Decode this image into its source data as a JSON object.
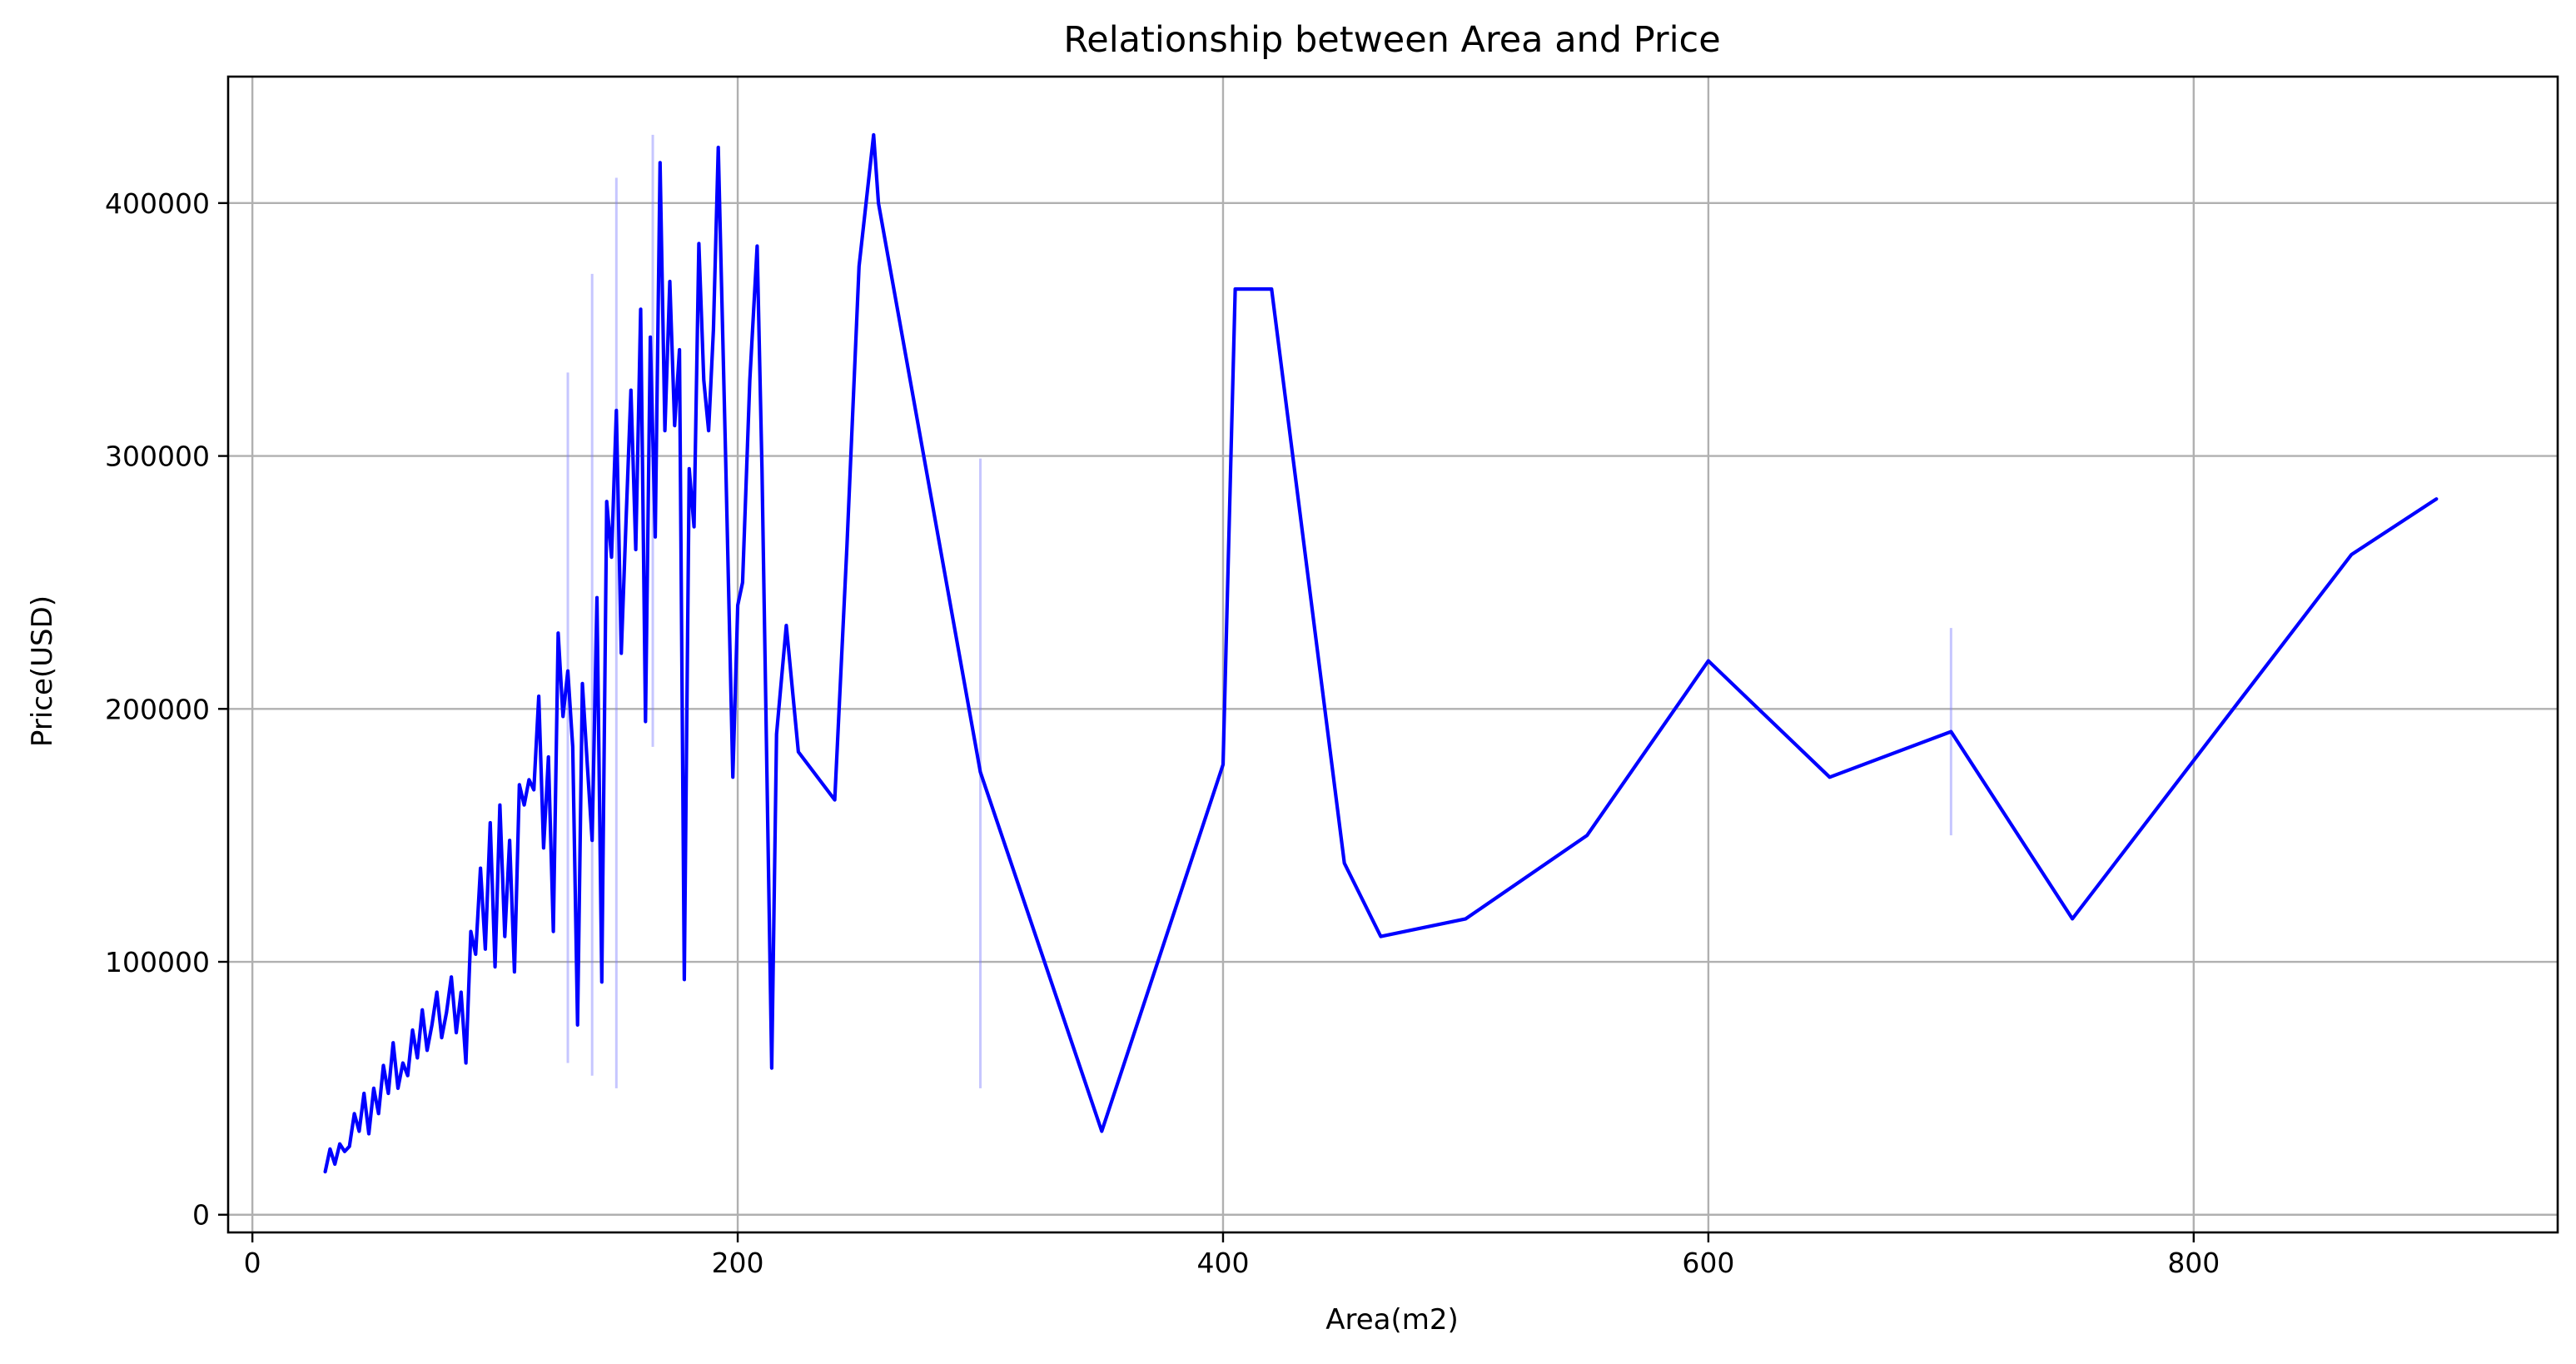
{
  "chart_data": {
    "type": "line",
    "title": "Relationship between Area and Price",
    "xlabel": "Area(m2)",
    "ylabel": "Price(USD)",
    "xlim": [
      -10,
      950
    ],
    "ylim": [
      -7000,
      450000
    ],
    "xticks": [
      0,
      200,
      400,
      600,
      800
    ],
    "xtick_labels": [
      "0",
      "200",
      "400",
      "600",
      "800"
    ],
    "yticks": [
      0,
      100000,
      200000,
      300000,
      400000
    ],
    "ytick_labels": [
      "0",
      "100000",
      "200000",
      "300000",
      "400000"
    ],
    "grid": true,
    "line_color": "#0000ff",
    "band_color": "#8080ff",
    "series": [
      {
        "name": "Price",
        "x": [
          30,
          32,
          34,
          36,
          38,
          40,
          42,
          44,
          46,
          48,
          50,
          52,
          54,
          56,
          58,
          60,
          62,
          64,
          66,
          68,
          70,
          72,
          74,
          76,
          78,
          80,
          82,
          84,
          86,
          88,
          90,
          92,
          94,
          96,
          98,
          100,
          102,
          104,
          106,
          108,
          110,
          112,
          114,
          116,
          118,
          120,
          122,
          124,
          126,
          128,
          130,
          132,
          134,
          136,
          138,
          140,
          142,
          144,
          146,
          148,
          150,
          152,
          154,
          156,
          158,
          160,
          162,
          164,
          166,
          168,
          170,
          172,
          174,
          176,
          178,
          180,
          182,
          184,
          186,
          188,
          190,
          192,
          195,
          198,
          200,
          202,
          205,
          208,
          210,
          214,
          216,
          220,
          225,
          240,
          245,
          250,
          256,
          258,
          300,
          350,
          400,
          405,
          420,
          450,
          465,
          500,
          550,
          600,
          650,
          700,
          750,
          865,
          900
        ],
        "y": [
          17000,
          26000,
          20000,
          28000,
          25000,
          27000,
          40000,
          33000,
          48000,
          32000,
          50000,
          40000,
          59000,
          48000,
          68000,
          50000,
          60000,
          55000,
          73000,
          62000,
          81000,
          65000,
          75000,
          88000,
          70000,
          80000,
          94000,
          72000,
          88000,
          60000,
          112000,
          103000,
          137000,
          105000,
          155000,
          98000,
          162000,
          110000,
          148000,
          96000,
          170000,
          162000,
          172000,
          168000,
          205000,
          145000,
          181000,
          112000,
          230000,
          197000,
          215000,
          185000,
          75000,
          210000,
          178000,
          148000,
          244000,
          92000,
          282000,
          260000,
          318000,
          222000,
          275000,
          326000,
          263000,
          358000,
          195000,
          347000,
          268000,
          416000,
          310000,
          369000,
          312000,
          342000,
          93000,
          295000,
          272000,
          384000,
          330000,
          310000,
          350000,
          422000,
          300000,
          173000,
          241000,
          250000,
          330000,
          383000,
          295000,
          58000,
          190000,
          233000,
          183000,
          164000,
          264000,
          375000,
          427000,
          400000,
          175000,
          33000,
          178000,
          366000,
          366000,
          139000,
          110000,
          117000,
          150000,
          219000,
          173000,
          191000,
          117000,
          261000,
          283000
        ]
      }
    ],
    "confidence_intervals": [
      {
        "x": 130,
        "low": 60000,
        "high": 333000
      },
      {
        "x": 140,
        "low": 55000,
        "high": 372000
      },
      {
        "x": 150,
        "low": 50000,
        "high": 410000
      },
      {
        "x": 165,
        "low": 185000,
        "high": 427000
      },
      {
        "x": 300,
        "low": 50000,
        "high": 299000
      },
      {
        "x": 700,
        "low": 150000,
        "high": 232000
      }
    ]
  }
}
